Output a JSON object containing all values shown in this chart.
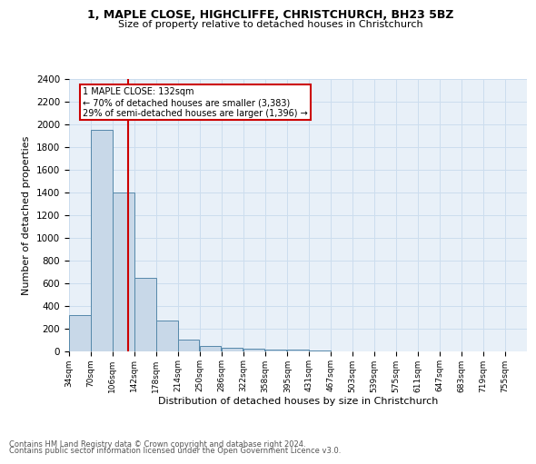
{
  "title1": "1, MAPLE CLOSE, HIGHCLIFFE, CHRISTCHURCH, BH23 5BZ",
  "title2": "Size of property relative to detached houses in Christchurch",
  "xlabel": "Distribution of detached houses by size in Christchurch",
  "ylabel": "Number of detached properties",
  "footer1": "Contains HM Land Registry data © Crown copyright and database right 2024.",
  "footer2": "Contains public sector information licensed under the Open Government Licence v3.0.",
  "bin_labels": [
    "34sqm",
    "70sqm",
    "106sqm",
    "142sqm",
    "178sqm",
    "214sqm",
    "250sqm",
    "286sqm",
    "322sqm",
    "358sqm",
    "395sqm",
    "431sqm",
    "467sqm",
    "503sqm",
    "539sqm",
    "575sqm",
    "611sqm",
    "647sqm",
    "683sqm",
    "719sqm",
    "755sqm"
  ],
  "bin_edges": [
    34,
    70,
    106,
    142,
    178,
    214,
    250,
    286,
    322,
    358,
    395,
    431,
    467,
    503,
    539,
    575,
    611,
    647,
    683,
    719,
    755
  ],
  "bar_heights": [
    320,
    1950,
    1400,
    650,
    270,
    105,
    45,
    35,
    25,
    20,
    15,
    5,
    3,
    2,
    1,
    1,
    1,
    0,
    0,
    0
  ],
  "bar_color": "#c8d8e8",
  "bar_edge_color": "#5588aa",
  "property_size": 132,
  "property_label": "1 MAPLE CLOSE: 132sqm",
  "annotation_line1": "← 70% of detached houses are smaller (3,383)",
  "annotation_line2": "29% of semi-detached houses are larger (1,396) →",
  "vline_color": "#cc0000",
  "annotation_box_color": "#cc0000",
  "ylim": [
    0,
    2400
  ],
  "yticks": [
    0,
    200,
    400,
    600,
    800,
    1000,
    1200,
    1400,
    1600,
    1800,
    2000,
    2200,
    2400
  ],
  "grid_color": "#ccddee",
  "background_color": "#e8f0f8"
}
